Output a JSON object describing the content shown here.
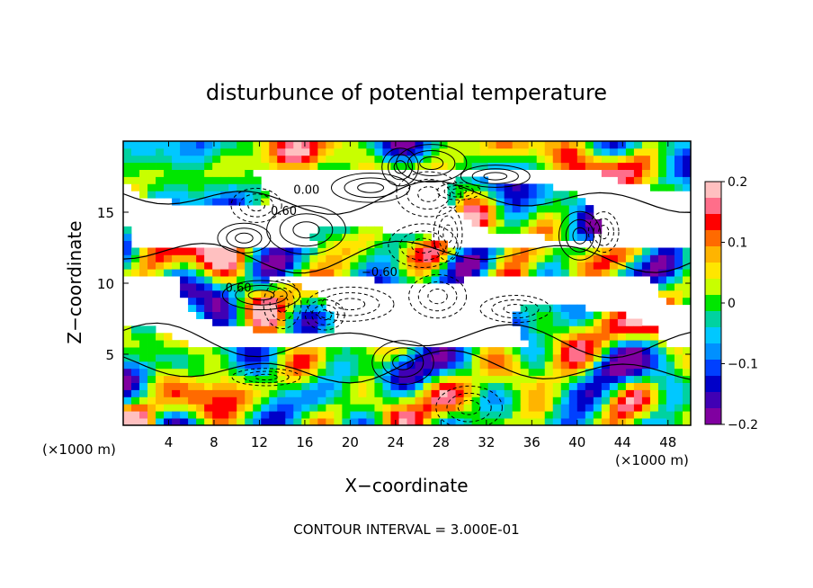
{
  "chart_data": {
    "type": "heatmap",
    "title": "disturbunce of potential temperature",
    "xlabel": "X−coordinate",
    "ylabel": "Z−coordinate",
    "x_unit_left": "(×1000 m)",
    "x_unit_right": "(×1000 m)",
    "xlim": [
      0,
      50
    ],
    "ylim": [
      0,
      20
    ],
    "xticks": [
      4,
      8,
      12,
      16,
      20,
      24,
      28,
      32,
      36,
      40,
      44,
      48
    ],
    "yticks": [
      5,
      10,
      15
    ],
    "colorbar": {
      "range": [
        -0.2,
        0.2
      ],
      "ticks": [
        0.2,
        0.1,
        0,
        -0.1,
        -0.2
      ],
      "tick_labels": [
        "0.2",
        "0.1",
        "0",
        "−0.1",
        "−0.2"
      ],
      "colors": [
        "#ffc0c0",
        "#ff6e8a",
        "#ff0000",
        "#ff6a00",
        "#ffb400",
        "#ffe600",
        "#c8ff00",
        "#00e600",
        "#00d2a0",
        "#00c8ff",
        "#0090ff",
        "#0040ff",
        "#0000c8",
        "#4000b4",
        "#8000a0"
      ]
    },
    "contour_labels": [
      "0.00",
      "0.60",
      "−0.60",
      "0.60"
    ],
    "footer": "CONTOUR INTERVAL = 3.000E-01"
  }
}
